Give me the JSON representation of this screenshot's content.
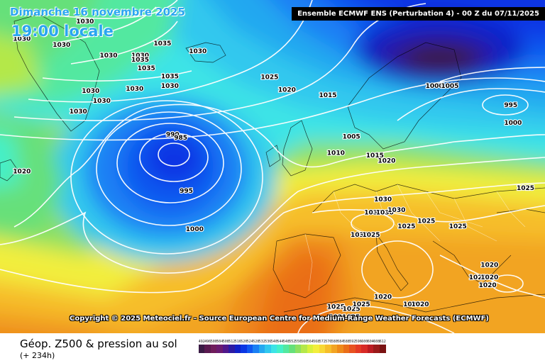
{
  "header": {
    "date": "Dimanche 16 novembre 2025",
    "time": "19:00 locale",
    "run": "Ensemble ECMWF ENS  (Perturbation 4)  -  00 Z du 07/11/2025"
  },
  "copyright": "Copyright © 2025 Meteociel.fr - Source European Centre for Medium-Range Weather Forecasts (ECMWF)",
  "footer": {
    "parameter": "Géop. Z500 & pression au sol",
    "lead_time": "(+ 234h)"
  },
  "legend": {
    "labels": [
      "492",
      "496",
      "500",
      "504",
      "508",
      "512",
      "516",
      "520",
      "524",
      "528",
      "532",
      "536",
      "540",
      "544",
      "548",
      "552",
      "556",
      "560",
      "564",
      "568",
      "572",
      "576",
      "580",
      "584",
      "588",
      "592",
      "596",
      "600",
      "604",
      "608",
      "612"
    ],
    "colors": [
      "#3a1b45",
      "#5a1a50",
      "#6f1c5c",
      "#6a1a70",
      "#50178a",
      "#2c1aa4",
      "#1020c8",
      "#0a36e4",
      "#1058f0",
      "#1a80f4",
      "#24a8f0",
      "#30c8ee",
      "#3ce4e6",
      "#44f0c8",
      "#52e8a0",
      "#66e07a",
      "#8ee060",
      "#b4e84a",
      "#d8f03c",
      "#f2ee3c",
      "#f8d834",
      "#f6be2a",
      "#f2a422",
      "#ee8a1a",
      "#ea6e18",
      "#e85220",
      "#e43a24",
      "#d82a26",
      "#bc1c22",
      "#9a1a1a",
      "#7a1212"
    ]
  },
  "isobar_labels": [
    {
      "text": "1030",
      "lon": -37.7,
      "lat": 69.7
    },
    {
      "text": "1030",
      "lon": -19.5,
      "lat": 63.0
    },
    {
      "text": "1035",
      "lon": -25.2,
      "lat": 64.8
    },
    {
      "text": "1035",
      "lon": -27.8,
      "lat": 59.2
    },
    {
      "text": "1035",
      "lon": -24.0,
      "lat": 57.4
    },
    {
      "text": "1030",
      "lon": -24.0,
      "lat": 55.2
    },
    {
      "text": "1030",
      "lon": -47.9,
      "lat": 65.8
    },
    {
      "text": "1030",
      "lon": -41.5,
      "lat": 64.5
    },
    {
      "text": "1030",
      "lon": -33.9,
      "lat": 62.1
    },
    {
      "text": "1030",
      "lon": -28.8,
      "lat": 62.1
    },
    {
      "text": "1035",
      "lon": -28.8,
      "lat": 61.1
    },
    {
      "text": "1030",
      "lon": -29.7,
      "lat": 54.6
    },
    {
      "text": "1030",
      "lon": -36.8,
      "lat": 54.1
    },
    {
      "text": "1030",
      "lon": -35.0,
      "lat": 51.9
    },
    {
      "text": "1030",
      "lon": -38.8,
      "lat": 49.5
    },
    {
      "text": "1025",
      "lon": -7.9,
      "lat": 57.2
    },
    {
      "text": "1020",
      "lon": -5.1,
      "lat": 54.3
    },
    {
      "text": "1015",
      "lon": 1.5,
      "lat": 53.1
    },
    {
      "text": "1000",
      "lon": 18.7,
      "lat": 55.2
    },
    {
      "text": "1005",
      "lon": 21.2,
      "lat": 55.2
    },
    {
      "text": "995",
      "lon": 31.4,
      "lat": 50.9
    },
    {
      "text": "1000",
      "lon": 31.4,
      "lat": 46.9
    },
    {
      "text": "1005",
      "lon": 5.3,
      "lat": 43.8
    },
    {
      "text": "1010",
      "lon": 2.8,
      "lat": 40.1
    },
    {
      "text": "1015",
      "lon": 9.1,
      "lat": 39.6
    },
    {
      "text": "1020",
      "lon": 11.0,
      "lat": 38.4
    },
    {
      "text": "990",
      "lon": -23.2,
      "lat": 44.3
    },
    {
      "text": "985",
      "lon": -21.9,
      "lat": 43.6
    },
    {
      "text": "995",
      "lon": -21.0,
      "lat": 31.6
    },
    {
      "text": "1000",
      "lon": -20.0,
      "lat": 23.0
    },
    {
      "text": "1020",
      "lon": -47.9,
      "lat": 36.0
    },
    {
      "text": "1025",
      "lon": 34.0,
      "lat": 32.2
    },
    {
      "text": "1030",
      "lon": 10.4,
      "lat": 29.7
    },
    {
      "text": "1030",
      "lon": 8.8,
      "lat": 26.7
    },
    {
      "text": "1030",
      "lon": 10.7,
      "lat": 26.7
    },
    {
      "text": "1030",
      "lon": 12.6,
      "lat": 27.3
    },
    {
      "text": "1025",
      "lon": 17.4,
      "lat": 24.8
    },
    {
      "text": "1025",
      "lon": 14.2,
      "lat": 23.6
    },
    {
      "text": "1025",
      "lon": 22.5,
      "lat": 23.6
    },
    {
      "text": "1030",
      "lon": 6.6,
      "lat": 21.7
    },
    {
      "text": "1025",
      "lon": 8.5,
      "lat": 21.7
    },
    {
      "text": "1020",
      "lon": 27.6,
      "lat": 14.9
    },
    {
      "text": "1020",
      "lon": 25.7,
      "lat": 12.1
    },
    {
      "text": "1020",
      "lon": 27.6,
      "lat": 12.1
    },
    {
      "text": "1020",
      "lon": 27.3,
      "lat": 10.4
    },
    {
      "text": "1020",
      "lon": 10.4,
      "lat": 7.7
    },
    {
      "text": "1020",
      "lon": 15.1,
      "lat": 6.1
    },
    {
      "text": "1020",
      "lon": 16.4,
      "lat": 6.1
    },
    {
      "text": "1025",
      "lon": 2.8,
      "lat": 5.5
    },
    {
      "text": "1025",
      "lon": 5.3,
      "lat": 5.0
    },
    {
      "text": "1025",
      "lon": 6.9,
      "lat": 6.1
    },
    {
      "text": "1021025",
      "lon": 3.1,
      "lat": 3.2
    }
  ]
}
